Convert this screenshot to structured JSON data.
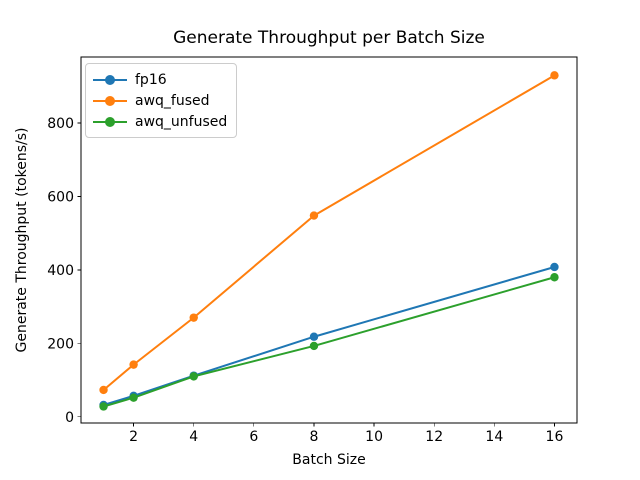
{
  "figure": {
    "background_color": "#ffffff",
    "text_color": "#000000",
    "spine_color": "#000000"
  },
  "chart_data": {
    "type": "line",
    "title": "Generate Throughput per Batch Size",
    "xlabel": "Batch Size",
    "ylabel": "Generate Throughput (tokens/s)",
    "x": [
      1,
      2,
      4,
      8,
      16
    ],
    "series": [
      {
        "name": "fp16",
        "color": "#1f77b4",
        "values": [
          32,
          57,
          112,
          218,
          408
        ]
      },
      {
        "name": "awq_fused",
        "color": "#ff7f0e",
        "values": [
          73,
          142,
          270,
          548,
          930
        ]
      },
      {
        "name": "awq_unfused",
        "color": "#2ca02c",
        "values": [
          28,
          52,
          110,
          193,
          380
        ]
      }
    ],
    "x_ticks": [
      2,
      4,
      6,
      8,
      10,
      12,
      14,
      16
    ],
    "y_ticks": [
      0,
      200,
      400,
      600,
      800
    ],
    "xlim": [
      0.25,
      16.75
    ],
    "ylim": [
      -17,
      980
    ],
    "grid": false,
    "legend_position": "upper left",
    "marker": "circle",
    "line_width": 2,
    "marker_radius": 4.2
  }
}
